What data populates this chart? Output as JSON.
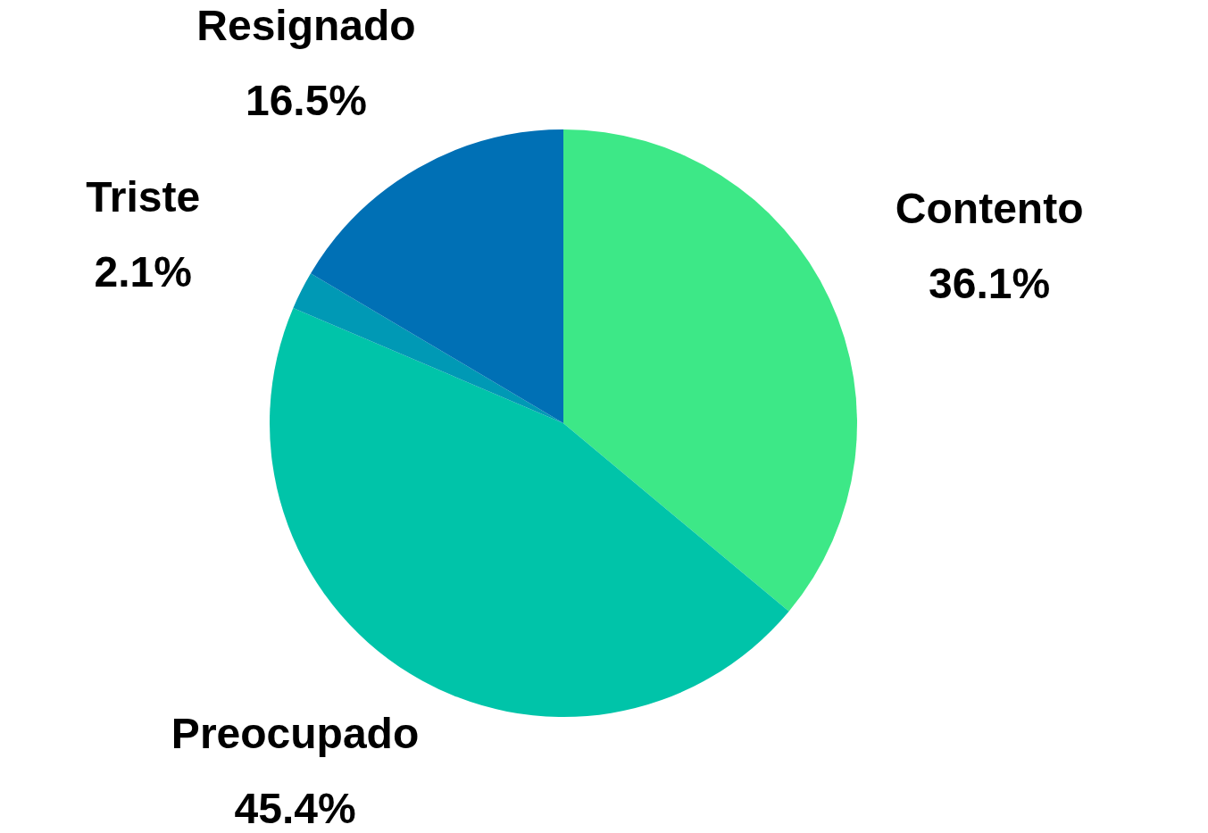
{
  "chart_data": {
    "type": "pie",
    "categories": [
      "Contento",
      "Preocupado",
      "Triste",
      "Resignado"
    ],
    "values": [
      36.1,
      45.4,
      2.1,
      16.5
    ],
    "value_labels": [
      "36.1%",
      "45.4%",
      "2.1%",
      "16.5%"
    ],
    "colors": [
      "#3de887",
      "#00c4a9",
      "#0099b5",
      "#0070b5"
    ],
    "legend": false
  }
}
